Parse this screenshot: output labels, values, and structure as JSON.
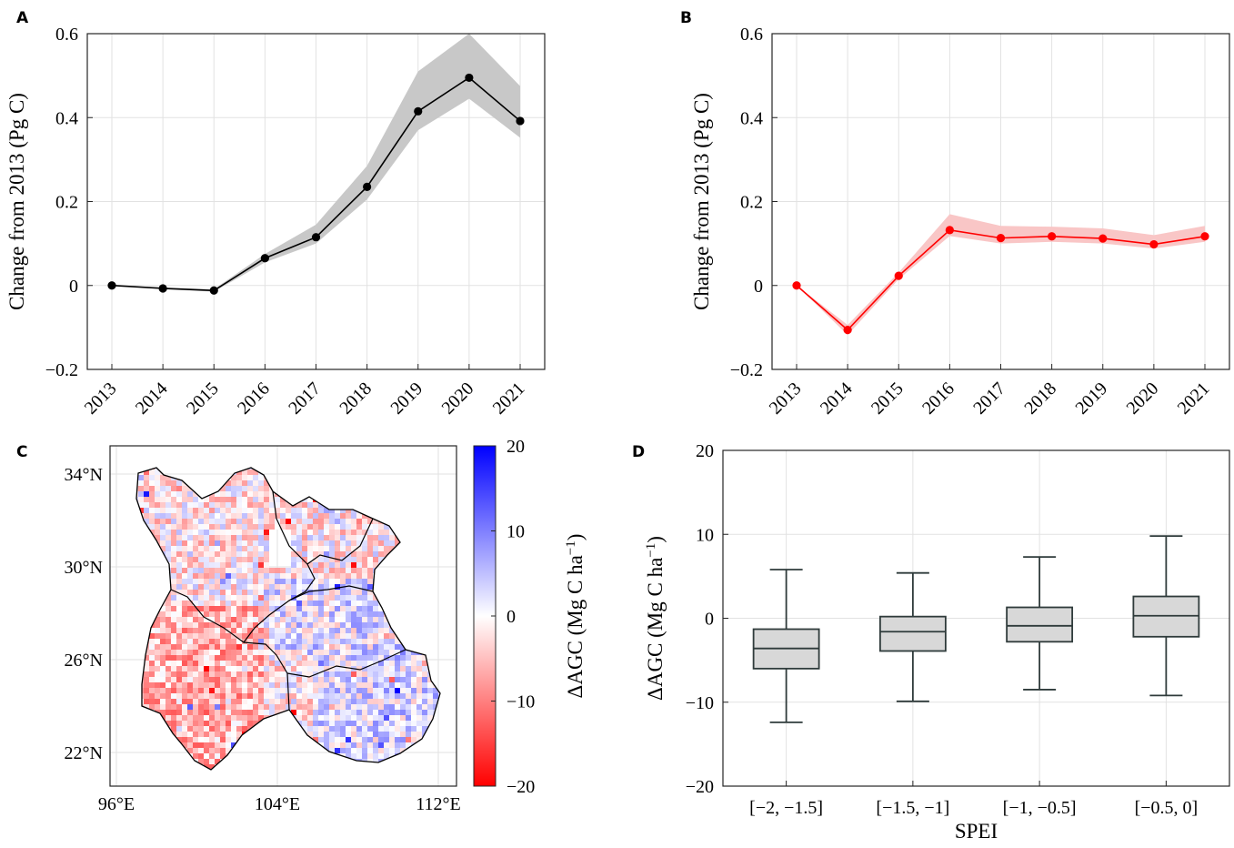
{
  "chart_data": [
    {
      "panel": "A",
      "type": "line",
      "x": [
        "2013",
        "2014",
        "2015",
        "2016",
        "2017",
        "2018",
        "2019",
        "2020",
        "2021"
      ],
      "y": [
        0,
        -0.007,
        -0.012,
        0.065,
        0.115,
        0.235,
        0.415,
        0.495,
        0.392
      ],
      "band_low": [
        0,
        -0.009,
        -0.015,
        0.055,
        0.1,
        0.205,
        0.37,
        0.445,
        0.352
      ],
      "band_high": [
        0,
        -0.005,
        -0.009,
        0.075,
        0.145,
        0.285,
        0.51,
        0.6,
        0.475
      ],
      "ylabel": "Change from 2013 (Pg C)",
      "ylim": [
        -0.2,
        0.6
      ],
      "yticks": [
        "−0.2",
        "0",
        "0.2",
        "0.4",
        "0.6"
      ],
      "color": "#000000",
      "band_color": "#c8c8c8",
      "grid": true
    },
    {
      "panel": "B",
      "type": "line",
      "x": [
        "2013",
        "2014",
        "2015",
        "2016",
        "2017",
        "2018",
        "2019",
        "2020",
        "2021"
      ],
      "y": [
        0,
        -0.106,
        0.023,
        0.132,
        0.113,
        0.117,
        0.112,
        0.098,
        0.117
      ],
      "band_low": [
        0,
        -0.118,
        0.015,
        0.118,
        0.1,
        0.104,
        0.1,
        0.088,
        0.104
      ],
      "band_high": [
        0,
        -0.094,
        0.031,
        0.17,
        0.142,
        0.14,
        0.136,
        0.12,
        0.142
      ],
      "ylabel": "Change from 2013 (Pg C)",
      "ylim": [
        -0.2,
        0.6
      ],
      "yticks": [
        "−0.2",
        "0",
        "0.2",
        "0.4",
        "0.6"
      ],
      "color": "#ff0000",
      "band_color": "#f9c6c6",
      "grid": true
    },
    {
      "panel": "C",
      "type": "heatmap",
      "xticks": [
        "96°E",
        "104°E",
        "112°E"
      ],
      "yticks": [
        "22°N",
        "26°N",
        "30°N",
        "34°N"
      ],
      "colorbar_label": "ΔAGC (Mg C ha⁻¹)",
      "colorbar_label_base": "ΔAGC (Mg C ha",
      "colorbar_label_exp": "−1",
      "colorbar_label_end": ")",
      "colorbar_ticks": [
        "20",
        "10",
        "0",
        "−10",
        "−20"
      ],
      "colorbar_range": [
        -20,
        20
      ],
      "colormap": [
        "#ff0000",
        "#ffffff",
        "#0000ff"
      ]
    },
    {
      "panel": "D",
      "type": "box",
      "categories": [
        "[−2, −1.5]",
        "[−1.5, −1]",
        "[−1, −0.5]",
        "[−0.5, 0]"
      ],
      "boxes": [
        {
          "whisker_low": -12.4,
          "q1": -6.0,
          "median": -3.6,
          "q3": -1.3,
          "whisker_high": 5.8
        },
        {
          "whisker_low": -9.9,
          "q1": -3.9,
          "median": -1.6,
          "q3": 0.2,
          "whisker_high": 5.4
        },
        {
          "whisker_low": -8.5,
          "q1": -2.8,
          "median": -0.9,
          "q3": 1.3,
          "whisker_high": 7.3
        },
        {
          "whisker_low": -9.2,
          "q1": -2.2,
          "median": 0.3,
          "q3": 2.6,
          "whisker_high": 9.8
        }
      ],
      "xlabel": "SPEI",
      "ylabel": "ΔAGC (Mg C ha⁻¹)",
      "ylabel_base": "ΔAGC (Mg C ha",
      "ylabel_exp": "−1",
      "ylabel_end": ")",
      "ylim": [
        -20,
        20
      ],
      "yticks": [
        "−20",
        "−10",
        "0",
        "10",
        "20"
      ],
      "box_color": "#d8d8d8",
      "edge_color": "#2f3b3b",
      "grid": true
    }
  ],
  "panel_labels": [
    "A",
    "B",
    "C",
    "D"
  ]
}
